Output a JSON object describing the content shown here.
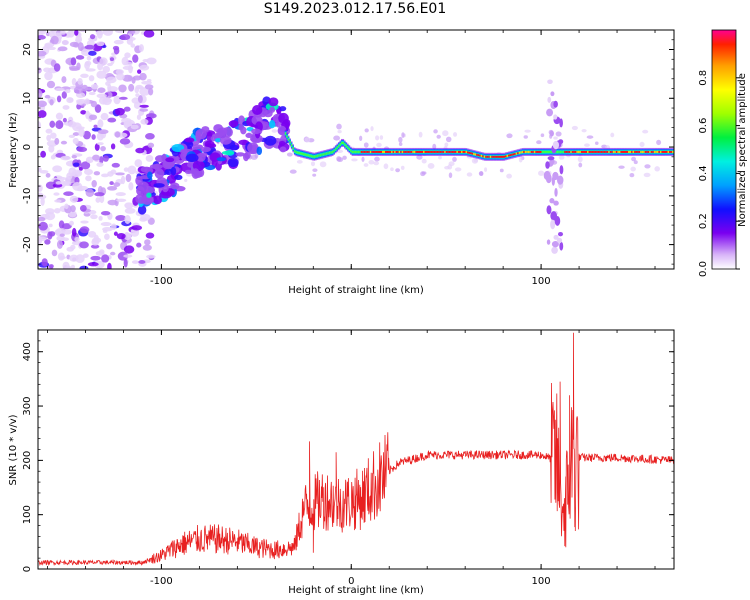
{
  "title": "S149.2023.012.17.56.E01",
  "colors": {
    "snr_line": "#e82020",
    "axis": "#000000"
  },
  "chart_data": [
    {
      "type": "heatmap",
      "xlabel": "Height of straight line (km)",
      "ylabel": "Frequency (Hz)",
      "xlim": [
        -165,
        170
      ],
      "ylim": [
        -25,
        24
      ],
      "x_ticks": [
        -100,
        0,
        100
      ],
      "x_tick_labels": [
        "-100",
        "",
        "100"
      ],
      "y_ticks": [
        -20,
        -10,
        0,
        10,
        20
      ],
      "y_tick_labels": [
        "-20",
        "-10",
        "0",
        "10",
        "20"
      ],
      "colorbar": {
        "label": "Normalized spectral amplitude",
        "ticks": [
          0.0,
          0.2,
          0.4,
          0.6,
          0.8
        ],
        "tick_labels": [
          "0.0",
          "0.2",
          "0.4",
          "0.6",
          "0.8"
        ],
        "range": [
          0,
          1
        ],
        "colormap": "rainbow"
      },
      "ridge_frequency": [
        [
          -110,
          -9
        ],
        [
          -100,
          -6
        ],
        [
          -90,
          -4
        ],
        [
          -80,
          -1
        ],
        [
          -70,
          0
        ],
        [
          -60,
          1
        ],
        [
          -50,
          3
        ],
        [
          -45,
          5
        ],
        [
          -38,
          5
        ],
        [
          -30,
          -1
        ],
        [
          -20,
          -2
        ],
        [
          -10,
          -1
        ],
        [
          -5,
          1
        ],
        [
          0,
          -1
        ],
        [
          20,
          -1
        ],
        [
          60,
          -1
        ],
        [
          70,
          -2
        ],
        [
          80,
          -2
        ],
        [
          90,
          -1
        ],
        [
          100,
          -1
        ],
        [
          110,
          -1
        ],
        [
          170,
          -1
        ]
      ]
    },
    {
      "type": "line",
      "xlabel": "Height of straight line (km)",
      "ylabel": "SNR (10 * v/v)",
      "xlim": [
        -165,
        170
      ],
      "ylim": [
        0,
        440
      ],
      "x_ticks": [
        -100,
        0,
        100
      ],
      "x_tick_labels": [
        "-100",
        "0",
        "100"
      ],
      "y_ticks": [
        0,
        100,
        200,
        300,
        400
      ],
      "y_tick_labels": [
        "0",
        "100",
        "200",
        "300",
        "400"
      ],
      "series": [
        {
          "envelope": [
            [
              -165,
              12
            ],
            [
              -110,
              12
            ],
            [
              -100,
              25
            ],
            [
              -90,
              45
            ],
            [
              -80,
              55
            ],
            [
              -70,
              55
            ],
            [
              -60,
              50
            ],
            [
              -50,
              40
            ],
            [
              -40,
              35
            ],
            [
              -30,
              40
            ],
            [
              -25,
              110
            ],
            [
              -15,
              130
            ],
            [
              -5,
              120
            ],
            [
              5,
              130
            ],
            [
              15,
              165
            ],
            [
              25,
              195
            ],
            [
              40,
              210
            ],
            [
              60,
              210
            ],
            [
              80,
              210
            ],
            [
              100,
              210
            ],
            [
              108,
              200
            ],
            [
              112,
              100
            ],
            [
              116,
              200
            ],
            [
              120,
              205
            ],
            [
              140,
              205
            ],
            [
              170,
              200
            ]
          ],
          "spikes": [
            [
              -22,
              235
            ],
            [
              -20,
              30
            ],
            [
              -8,
              215
            ],
            [
              110,
              345
            ],
            [
              113,
              40
            ],
            [
              115,
              320
            ],
            [
              117,
              435
            ],
            [
              118,
              70
            ]
          ]
        }
      ]
    }
  ]
}
